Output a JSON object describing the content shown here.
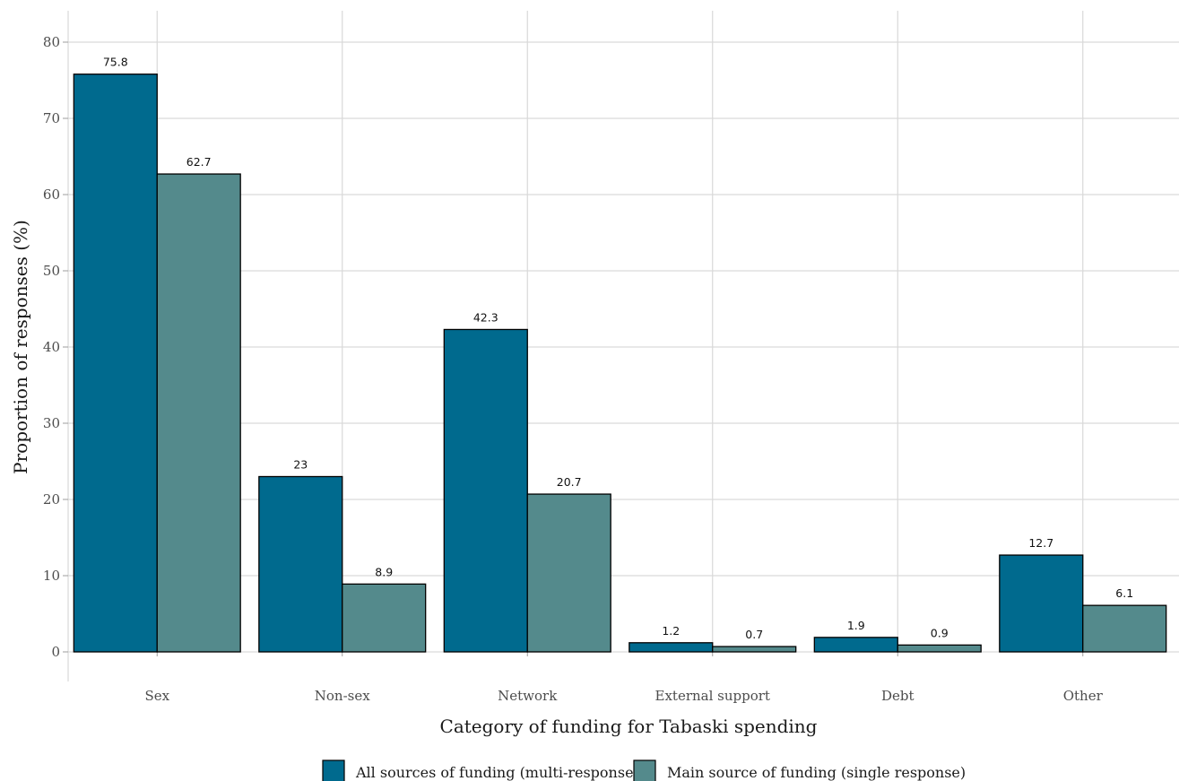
{
  "chart_data": {
    "type": "bar",
    "title": "",
    "xlabel": "Category of funding for Tabaski spending",
    "ylabel": "Proportion of responses (%)",
    "categories": [
      "Sex",
      "Non-sex",
      "Network",
      "External support",
      "Debt",
      "Other"
    ],
    "series": [
      {
        "name": "All sources of funding (multi-response)",
        "color": "#006a8e",
        "values": [
          75.8,
          23,
          42.3,
          1.2,
          1.9,
          12.7
        ],
        "labels": [
          "75.8",
          "23",
          "42.3",
          "1.2",
          "1.9",
          "12.7"
        ]
      },
      {
        "name": "Main source of funding (single response)",
        "color": "#548a8c",
        "values": [
          62.7,
          8.9,
          20.7,
          0.7,
          0.9,
          6.1
        ],
        "labels": [
          "62.7",
          "8.9",
          "20.7",
          "0.7",
          "0.9",
          "6.1"
        ]
      }
    ],
    "ylim": [
      0,
      80
    ],
    "yticks": [
      0,
      10,
      20,
      30,
      40,
      50,
      60,
      70,
      80
    ],
    "ytick_labels": [
      "0",
      "10",
      "20",
      "30",
      "40",
      "50",
      "60",
      "70",
      "80"
    ],
    "grid": true,
    "legend_position": "bottom"
  }
}
